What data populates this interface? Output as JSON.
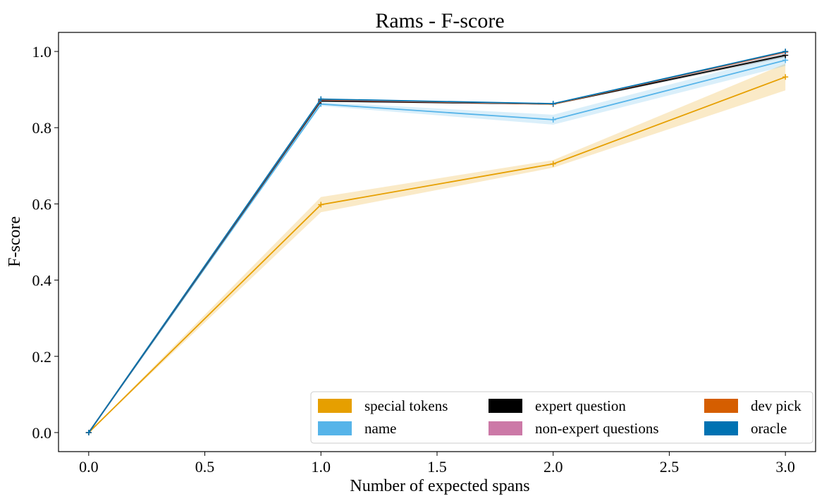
{
  "chart_data": {
    "type": "line",
    "title": "Rams - F-score",
    "xlabel": "Number of expected spans",
    "ylabel": "F-score",
    "xlim": [
      -0.13,
      3.13
    ],
    "ylim": [
      -0.05,
      1.05
    ],
    "xticks": [
      "0.0",
      "0.5",
      "1.0",
      "1.5",
      "2.0",
      "2.5",
      "3.0"
    ],
    "yticks": [
      "0.0",
      "0.2",
      "0.4",
      "0.6",
      "0.8",
      "1.0"
    ],
    "grid": false,
    "legend_position": "lower right",
    "x": [
      0,
      1,
      2,
      3
    ],
    "series": [
      {
        "name": "special tokens",
        "color": "#E69F00",
        "values": [
          0.0,
          0.598,
          0.705,
          0.933
        ],
        "lower": [
          0.0,
          0.578,
          0.695,
          0.898
        ],
        "upper": [
          0.0,
          0.618,
          0.715,
          0.968
        ]
      },
      {
        "name": "name",
        "color": "#56B4E9",
        "values": [
          0.0,
          0.862,
          0.821,
          0.977
        ],
        "lower": [
          0.0,
          0.857,
          0.808,
          0.962
        ],
        "upper": [
          0.0,
          0.867,
          0.834,
          0.992
        ]
      },
      {
        "name": "expert question",
        "color": "#000000",
        "values": [
          0.0,
          0.87,
          0.862,
          0.99
        ],
        "lower": [
          0.0,
          0.868,
          0.86,
          0.985
        ],
        "upper": [
          0.0,
          0.872,
          0.864,
          0.995
        ]
      },
      {
        "name": "non-expert questions",
        "color": "#CC79A7",
        "values": [
          0.0,
          0.873,
          0.862,
          0.998
        ],
        "lower": [
          0.0,
          0.873,
          0.862,
          0.998
        ],
        "upper": [
          0.0,
          0.873,
          0.862,
          0.998
        ]
      },
      {
        "name": "dev pick",
        "color": "#D55E00",
        "values": [
          0.0,
          0.874,
          0.862,
          0.999
        ],
        "lower": [
          0.0,
          0.874,
          0.862,
          0.999
        ],
        "upper": [
          0.0,
          0.874,
          0.862,
          0.999
        ]
      },
      {
        "name": "oracle",
        "color": "#0072B2",
        "values": [
          0.0,
          0.875,
          0.863,
          1.0
        ],
        "lower": [
          0.0,
          0.875,
          0.863,
          1.0
        ],
        "upper": [
          0.0,
          0.875,
          0.863,
          1.0
        ]
      }
    ]
  }
}
